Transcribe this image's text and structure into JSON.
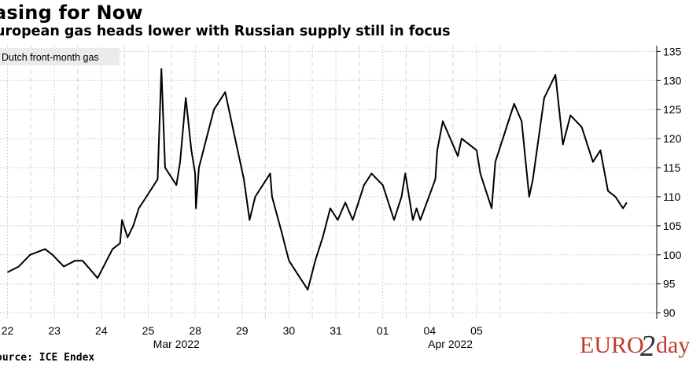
{
  "title": "asing for Now",
  "subtitle": "uropean gas heads lower with Russian supply still in focus",
  "source": "ource: ICE Endex",
  "logo_text": "EURO2day",
  "chart_data": {
    "type": "line",
    "series": [
      {
        "name": "Dutch front-month gas",
        "color": "#000000",
        "x": [
          0,
          0.3,
          0.6,
          1.0,
          1.2,
          1.5,
          1.8,
          2.0,
          2.4,
          2.8,
          3.0,
          3.05,
          3.2,
          3.35,
          3.5,
          3.7,
          4.0,
          4.1,
          4.2,
          4.5,
          4.6,
          4.75,
          4.9,
          5.0,
          5.02,
          5.1,
          5.3,
          5.5,
          5.8,
          6.0,
          6.3,
          6.45,
          6.6,
          6.8,
          7.0,
          7.05,
          7.3,
          7.5,
          7.7,
          8.0,
          8.2,
          8.4,
          8.6,
          8.8,
          9.0,
          9.2,
          9.5,
          9.7,
          10.0,
          10.3,
          10.5,
          10.6,
          10.8,
          10.9,
          11.0,
          11.4,
          11.45,
          11.6,
          12.0,
          12.1,
          12.5,
          12.6,
          12.9,
          13.0,
          13.3,
          13.5,
          13.7,
          13.9,
          14.0,
          14.3,
          14.6,
          14.8,
          15.0,
          15.3,
          15.6,
          15.8,
          16.0,
          16.2,
          16.4,
          16.5
        ],
        "y": [
          97,
          98,
          100,
          101,
          100,
          98,
          99,
          99,
          96,
          101,
          102,
          106,
          103,
          105,
          108,
          110,
          113,
          132,
          115,
          112,
          116,
          127,
          118,
          114,
          108,
          115,
          120,
          125,
          128,
          122,
          113,
          106,
          110,
          112,
          114,
          110,
          104,
          99,
          97,
          94,
          99,
          103,
          108,
          106,
          109,
          106,
          112,
          114,
          112,
          106,
          110,
          114,
          106,
          108,
          106,
          113,
          118,
          123,
          117,
          120,
          118,
          114,
          108,
          116,
          122,
          126,
          123,
          110,
          113,
          127,
          131,
          119,
          124,
          122,
          116,
          118,
          111,
          110,
          108,
          109
        ]
      }
    ],
    "ylim": [
      89,
      136
    ],
    "xlim": [
      -0.2,
      17.3
    ],
    "yticks": [
      90,
      95,
      100,
      105,
      110,
      115,
      120,
      125,
      130,
      135
    ],
    "xticks": [
      {
        "pos": 0,
        "label": "22"
      },
      {
        "pos": 1.25,
        "label": "23"
      },
      {
        "pos": 2.5,
        "label": "24"
      },
      {
        "pos": 3.75,
        "label": "25"
      },
      {
        "pos": 5.0,
        "label": "28"
      },
      {
        "pos": 6.25,
        "label": "29"
      },
      {
        "pos": 7.5,
        "label": "30"
      },
      {
        "pos": 8.75,
        "label": "31"
      },
      {
        "pos": 10.0,
        "label": "01"
      },
      {
        "pos": 11.25,
        "label": "04"
      },
      {
        "pos": 12.5,
        "label": "05"
      }
    ],
    "month_labels": [
      {
        "pos": 4.5,
        "label": "Mar 2022"
      },
      {
        "pos": 11.8,
        "label": "Apr 2022"
      }
    ],
    "grid": true,
    "legend": "top-left",
    "legend_label": "Dutch front-month gas"
  }
}
